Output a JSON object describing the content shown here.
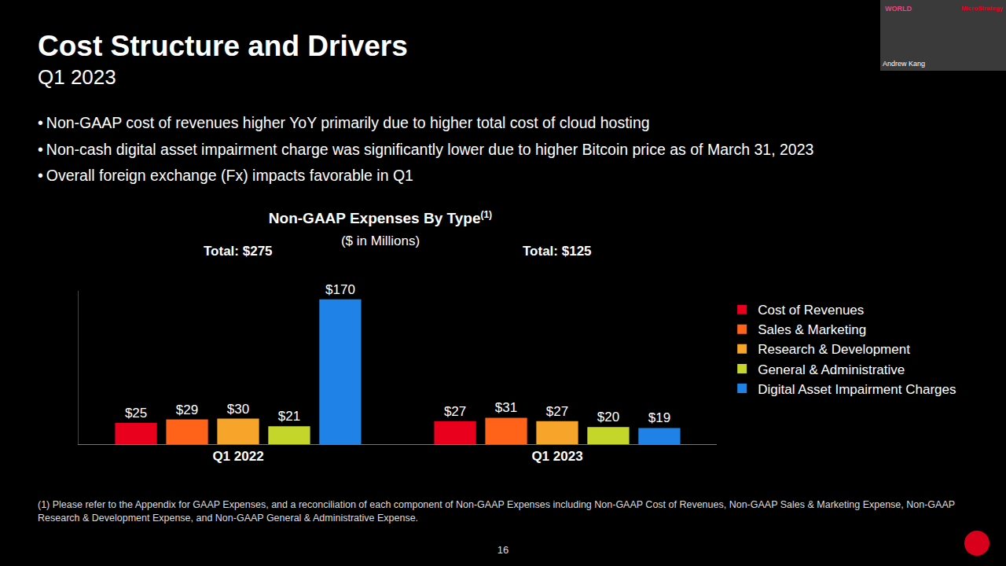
{
  "slide": {
    "title": "Cost Structure and Drivers",
    "subtitle": "Q1 2023",
    "bullets": [
      "Non-GAAP cost of revenues higher YoY primarily due to higher total cost of cloud hosting",
      "Non-cash digital asset impairment charge was significantly lower due to higher Bitcoin price as of March 31, 2023",
      "Overall foreign exchange (Fx) impacts favorable in Q1"
    ],
    "footnote": "(1) Please refer to the Appendix for GAAP Expenses, and a reconciliation of each component of Non-GAAP Expenses including Non-GAAP Cost of Revenues, Non-GAAP Sales & Marketing Expense, Non-GAAP Research & Development Expense, and Non-GAAP General & Administrative Expense.",
    "page_number": "16",
    "presenter": "Andrew Kang",
    "overlay_texts": [
      "WORLD",
      "MicroStrategy"
    ]
  },
  "chart_data": {
    "type": "bar",
    "title": "Non-GAAP Expenses By Type",
    "title_note": "(1)",
    "subtitle": "($ in Millions)",
    "categories": [
      "Q1 2022",
      "Q1 2023"
    ],
    "series": [
      {
        "name": "Cost of Revenues",
        "color": "#e8001c",
        "values": [
          25,
          27
        ],
        "value_labels": [
          "$25",
          "$27"
        ]
      },
      {
        "name": "Sales & Marketing",
        "color": "#ff6319",
        "values": [
          29,
          31
        ],
        "value_labels": [
          "$29",
          "$31"
        ]
      },
      {
        "name": "Research & Development",
        "color": "#f6a52a",
        "values": [
          30,
          27
        ],
        "value_labels": [
          "$30",
          "$27"
        ]
      },
      {
        "name": "General & Administrative",
        "color": "#c5d62b",
        "values": [
          21,
          20
        ],
        "value_labels": [
          "$21",
          "$20"
        ]
      },
      {
        "name": "Digital Asset Impairment Charges",
        "color": "#1f82e6",
        "values": [
          170,
          19
        ],
        "value_labels": [
          "$170",
          "$19"
        ]
      }
    ],
    "annotations": [
      {
        "x": "Q1 2022",
        "text": "Total: $275"
      },
      {
        "x": "Q1 2023",
        "text": "Total: $125"
      }
    ],
    "ylim": [
      0,
      180
    ],
    "yticks": [],
    "tick_labels": "x",
    "data_labels": true,
    "legend": "right",
    "grid": false
  }
}
